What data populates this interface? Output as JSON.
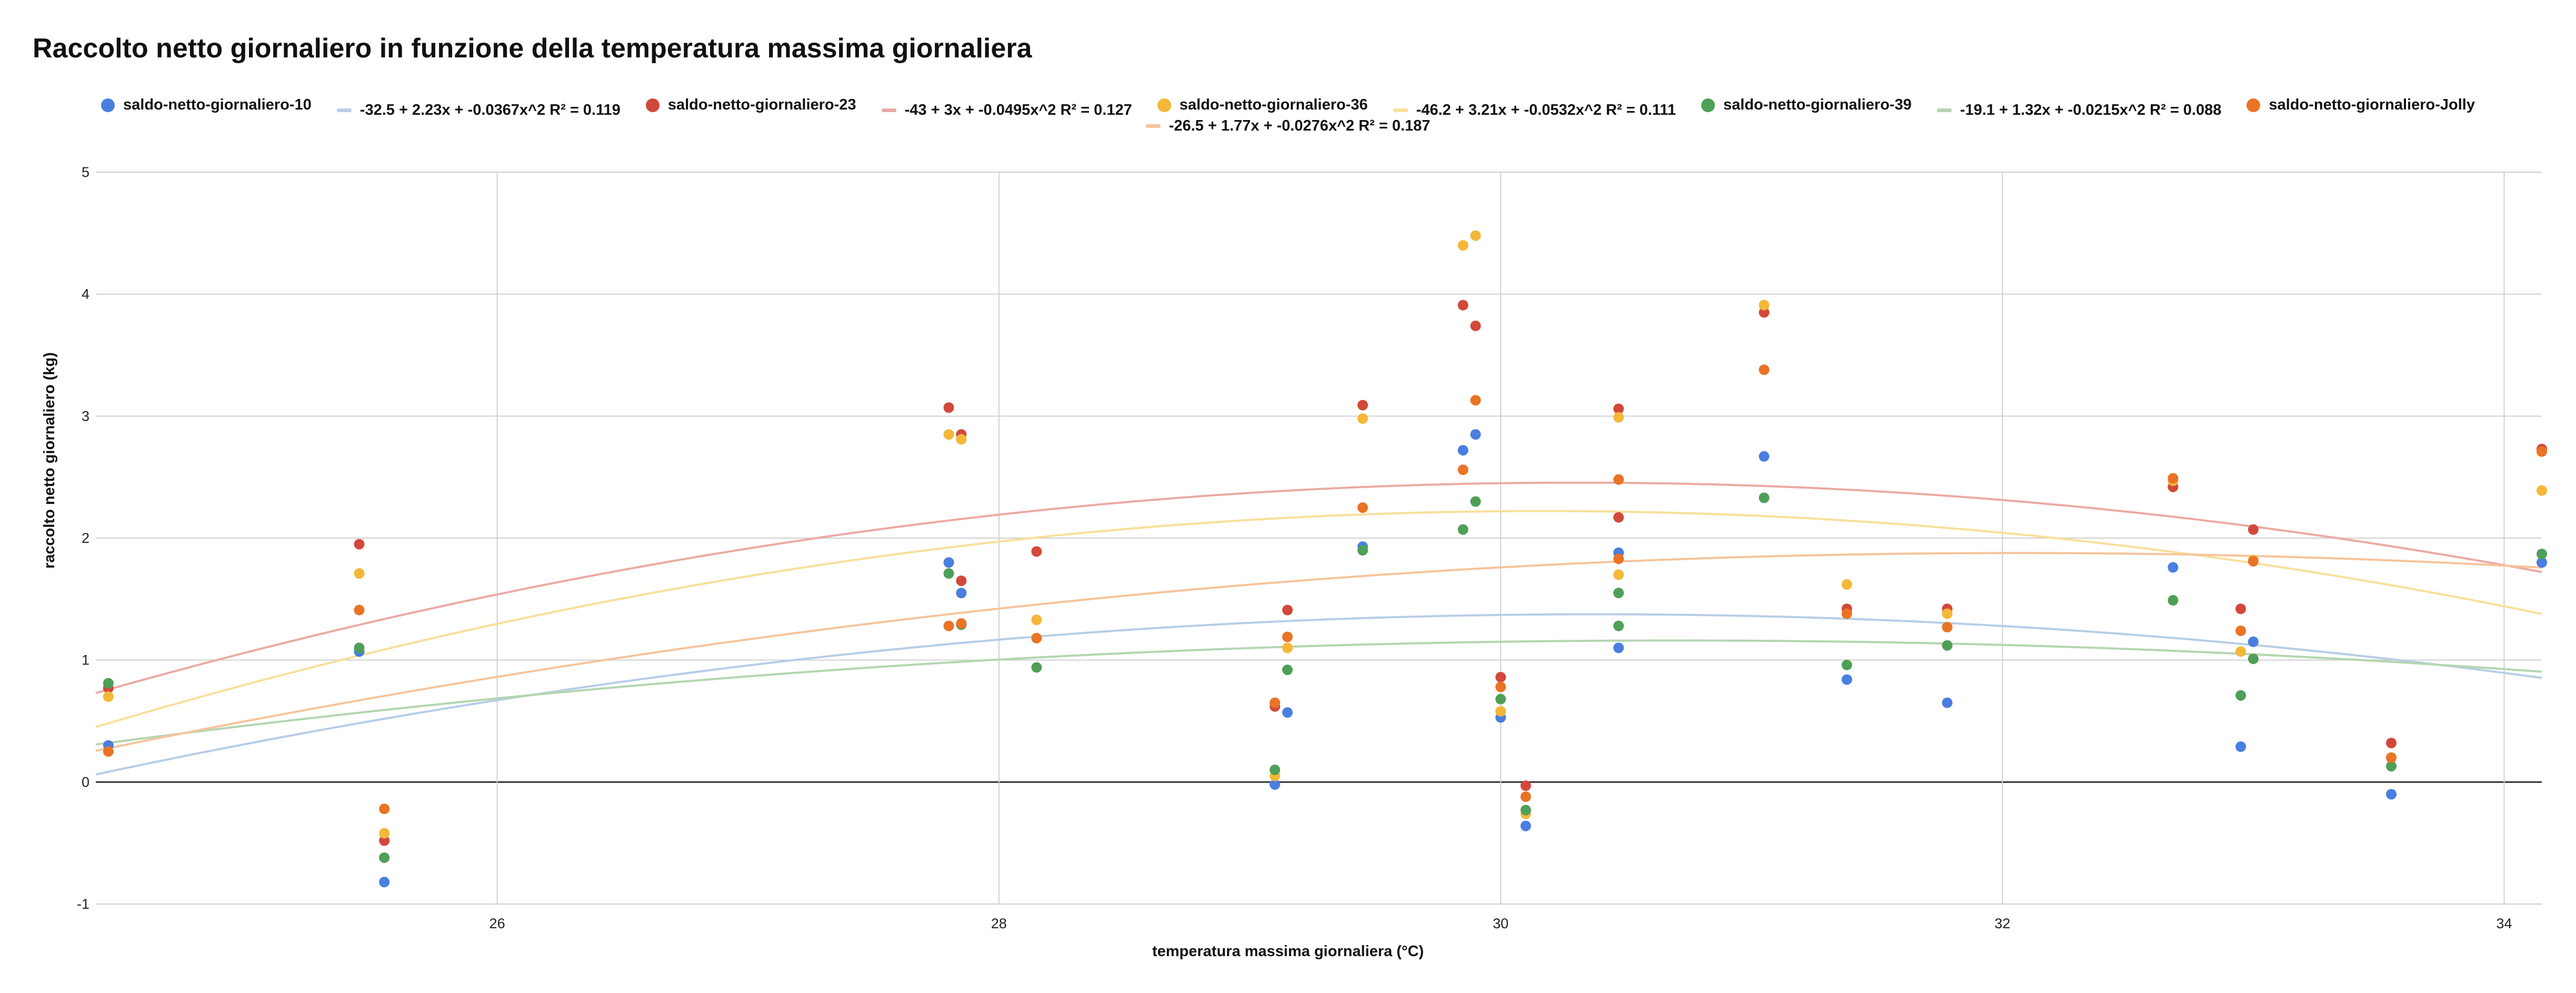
{
  "chart_data": {
    "type": "scatter",
    "title": "Raccolto netto giornaliero in funzione della temperatura massima giornaliera",
    "xlabel": "temperatura massima giornaliera (°C)",
    "ylabel": "raccolto netto giornaliero (kg)",
    "xlim": [
      24.4,
      34.15
    ],
    "ylim": [
      -1,
      5
    ],
    "xticks": [
      26,
      28,
      30,
      32,
      34
    ],
    "yticks": [
      -1,
      0,
      1,
      2,
      3,
      4,
      5
    ],
    "grid": true,
    "legend_position": "top",
    "x": [
      24.45,
      25.45,
      25.55,
      27.8,
      27.85,
      28.15,
      29.1,
      29.15,
      29.45,
      29.85,
      29.9,
      29.95,
      30.0,
      30.1,
      30.47,
      31.05,
      31.38,
      31.78,
      32.68,
      32.95,
      33.0,
      33.55,
      34.15
    ],
    "series": [
      {
        "name": "saldo-netto-giornaliero-10",
        "color": "#4a7ee0",
        "points": [
          [
            24.45,
            0.3
          ],
          [
            25.45,
            1.07
          ],
          [
            25.55,
            -0.82
          ],
          [
            27.8,
            1.8
          ],
          [
            27.85,
            1.55
          ],
          [
            29.1,
            -0.02
          ],
          [
            29.15,
            0.57
          ],
          [
            29.45,
            1.93
          ],
          [
            29.85,
            2.72
          ],
          [
            29.9,
            2.85
          ],
          [
            30.0,
            0.53
          ],
          [
            30.1,
            -0.36
          ],
          [
            30.47,
            1.88
          ],
          [
            30.47,
            1.1
          ],
          [
            31.05,
            2.67
          ],
          [
            31.38,
            0.84
          ],
          [
            31.78,
            0.65
          ],
          [
            32.68,
            1.76
          ],
          [
            32.95,
            0.29
          ],
          [
            33.0,
            1.15
          ],
          [
            33.55,
            -0.1
          ],
          [
            34.15,
            1.8
          ]
        ],
        "trend": {
          "label": "-32.5 + 2.23x + -0.0367x^2 R² = 0.119",
          "color": "#b7cde7",
          "a": -32.5,
          "b": 2.23,
          "c": -0.0367
        }
      },
      {
        "name": "saldo-netto-giornaliero-23",
        "color": "#d2483a",
        "points": [
          [
            24.45,
            0.77
          ],
          [
            25.45,
            1.95
          ],
          [
            25.55,
            -0.48
          ],
          [
            27.8,
            3.07
          ],
          [
            27.85,
            2.85
          ],
          [
            27.85,
            1.65
          ],
          [
            28.15,
            1.89
          ],
          [
            29.1,
            0.62
          ],
          [
            29.15,
            1.41
          ],
          [
            29.45,
            3.09
          ],
          [
            29.85,
            3.91
          ],
          [
            29.9,
            3.74
          ],
          [
            30.0,
            0.86
          ],
          [
            30.1,
            -0.03
          ],
          [
            30.47,
            3.06
          ],
          [
            30.47,
            2.17
          ],
          [
            31.05,
            3.85
          ],
          [
            31.38,
            1.42
          ],
          [
            31.78,
            1.42
          ],
          [
            32.68,
            2.42
          ],
          [
            32.95,
            1.42
          ],
          [
            33.0,
            2.07
          ],
          [
            33.55,
            0.32
          ],
          [
            34.15,
            2.73
          ]
        ],
        "trend": {
          "label": "-43 + 3x + -0.0495x^2 R² = 0.127",
          "color": "#eaaaa4",
          "a": -43,
          "b": 3,
          "c": -0.0495
        }
      },
      {
        "name": "saldo-netto-giornaliero-36",
        "color": "#f4b738",
        "points": [
          [
            24.45,
            0.7
          ],
          [
            25.45,
            1.71
          ],
          [
            25.55,
            -0.42
          ],
          [
            27.8,
            2.85
          ],
          [
            27.85,
            2.81
          ],
          [
            28.15,
            1.33
          ],
          [
            29.1,
            0.05
          ],
          [
            29.15,
            1.1
          ],
          [
            29.45,
            2.98
          ],
          [
            29.85,
            4.4
          ],
          [
            29.9,
            4.48
          ],
          [
            30.0,
            0.58
          ],
          [
            30.1,
            -0.26
          ],
          [
            30.47,
            2.99
          ],
          [
            30.47,
            1.7
          ],
          [
            31.05,
            3.91
          ],
          [
            31.38,
            1.62
          ],
          [
            31.78,
            1.38
          ],
          [
            32.68,
            2.47
          ],
          [
            32.95,
            1.07
          ],
          [
            33.0,
            1.82
          ],
          [
            33.55,
            0.2
          ],
          [
            34.15,
            2.39
          ]
        ],
        "trend": {
          "label": "-46.2 + 3.21x + -0.0532x^2 R² = 0.111",
          "color": "#f8df9a",
          "a": -46.2,
          "b": 3.21,
          "c": -0.0532
        }
      },
      {
        "name": "saldo-netto-giornaliero-39",
        "color": "#4e9f57",
        "points": [
          [
            24.45,
            0.81
          ],
          [
            25.45,
            1.1
          ],
          [
            25.55,
            -0.62
          ],
          [
            27.8,
            1.71
          ],
          [
            27.85,
            1.29
          ],
          [
            28.15,
            0.94
          ],
          [
            29.1,
            0.1
          ],
          [
            29.15,
            0.92
          ],
          [
            29.45,
            1.9
          ],
          [
            29.85,
            2.07
          ],
          [
            29.9,
            2.3
          ],
          [
            30.0,
            0.68
          ],
          [
            30.1,
            -0.23
          ],
          [
            30.47,
            1.55
          ],
          [
            30.47,
            1.28
          ],
          [
            31.05,
            2.33
          ],
          [
            31.38,
            0.96
          ],
          [
            31.78,
            1.12
          ],
          [
            32.68,
            1.49
          ],
          [
            32.95,
            0.71
          ],
          [
            33.0,
            1.01
          ],
          [
            33.55,
            0.13
          ],
          [
            34.15,
            1.87
          ]
        ],
        "trend": {
          "label": "-19.1 + 1.32x + -0.0215x^2 R² = 0.088",
          "color": "#b4d5b0",
          "a": -19.1,
          "b": 1.32,
          "c": -0.0215
        }
      },
      {
        "name": "saldo-netto-giornaliero-Jolly",
        "color": "#ea7325",
        "points": [
          [
            24.45,
            0.25
          ],
          [
            25.45,
            1.41
          ],
          [
            25.55,
            -0.22
          ],
          [
            27.8,
            1.28
          ],
          [
            27.85,
            1.3
          ],
          [
            28.15,
            1.18
          ],
          [
            29.1,
            0.65
          ],
          [
            29.15,
            1.19
          ],
          [
            29.45,
            2.25
          ],
          [
            29.85,
            2.56
          ],
          [
            29.9,
            3.13
          ],
          [
            30.0,
            0.78
          ],
          [
            30.1,
            -0.12
          ],
          [
            30.47,
            2.48
          ],
          [
            30.47,
            1.83
          ],
          [
            31.05,
            3.38
          ],
          [
            31.38,
            1.38
          ],
          [
            31.78,
            1.27
          ],
          [
            32.68,
            2.49
          ],
          [
            32.95,
            1.24
          ],
          [
            33.0,
            1.81
          ],
          [
            33.55,
            0.2
          ],
          [
            34.15,
            2.71
          ]
        ],
        "trend": {
          "label": "-26.5 + 1.77x + -0.0276x^2 R² = 0.187",
          "color": "#f6c49b",
          "a": -26.5,
          "b": 1.77,
          "c": -0.0276
        }
      }
    ]
  }
}
